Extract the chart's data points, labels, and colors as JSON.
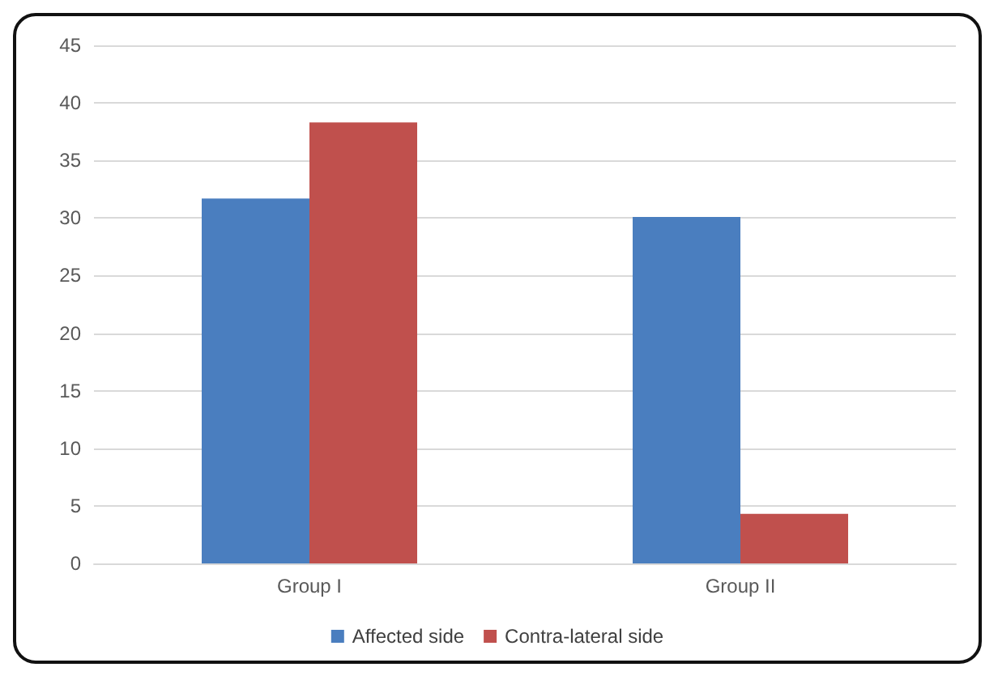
{
  "chart_data": {
    "type": "bar",
    "categories": [
      "Group I",
      "Group II"
    ],
    "series": [
      {
        "name": "Affected side",
        "color": "#4a7ebf",
        "values": [
          31.7,
          30.1
        ]
      },
      {
        "name": "Contra-lateral side",
        "color": "#c0504d",
        "values": [
          38.3,
          4.3
        ]
      }
    ],
    "ylim": [
      0,
      45
    ],
    "yticks": [
      0,
      5,
      10,
      15,
      20,
      25,
      30,
      35,
      40,
      45
    ],
    "grid": "y",
    "legend": "bottom"
  }
}
